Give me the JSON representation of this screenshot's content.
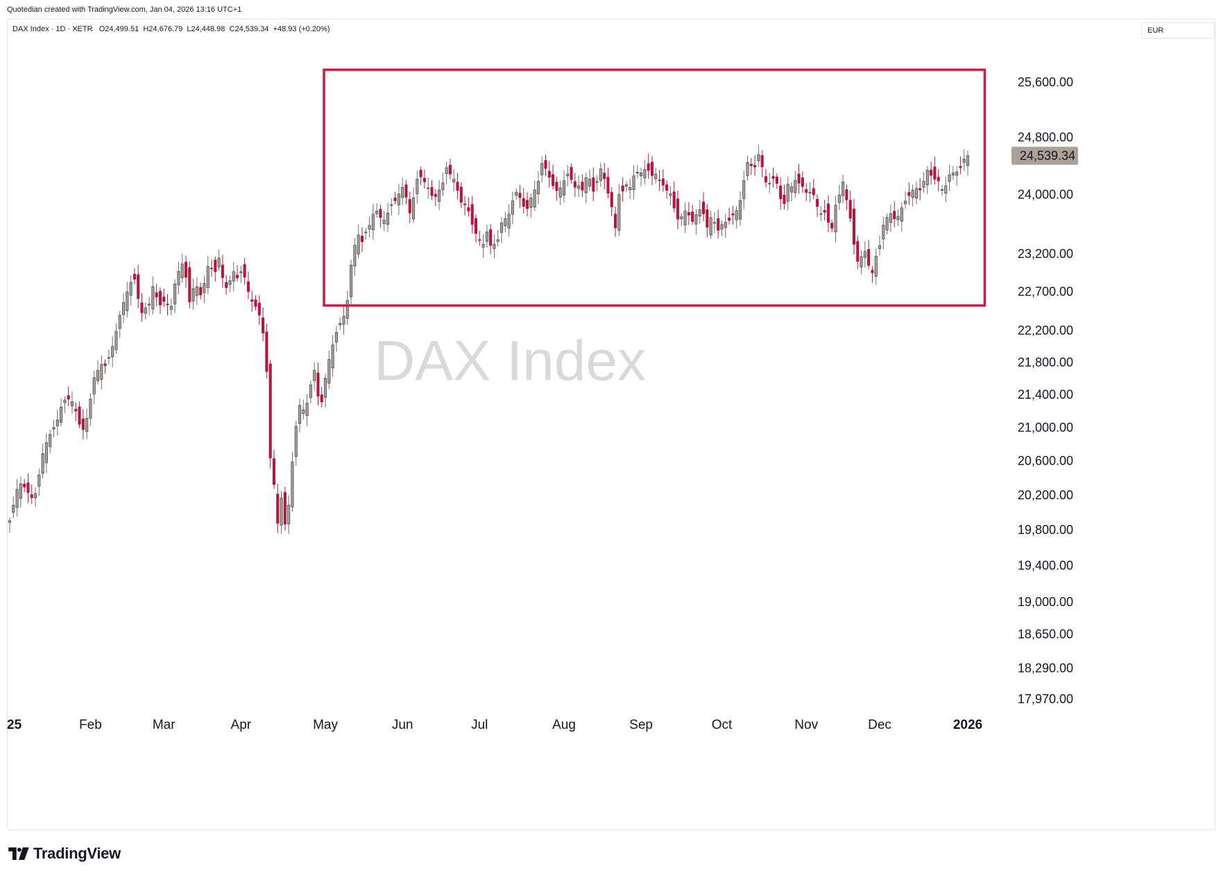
{
  "header": {
    "credit": "Quotedian created with TradingView.com, Jan 04, 2026 13:16 UTC+1"
  },
  "legend": {
    "symbol": "DAX Index · 1D · XETR",
    "open": "O24,499.51",
    "high": "H24,676.79",
    "low": "L24,448.98",
    "close": "C24,539.34",
    "change": "+48.93 (+0.20%)"
  },
  "currency": "EUR",
  "watermark": "DAX Index",
  "brand": {
    "name": "TradingView"
  },
  "colors": {
    "up_candle": "#aba196",
    "down_candle": "#b5163b",
    "wick": "#6b6b6b",
    "box": "#d31a44",
    "last_price_bg": "#aba196",
    "watermark": "#d9d9d9"
  },
  "chart_data": {
    "type": "candlestick",
    "title": "DAX Index",
    "interval": "1D",
    "exchange": "XETR",
    "currency": "EUR",
    "yscale": "log",
    "ylim": [
      17800,
      26200
    ],
    "y_ticks": [
      "25,600.00",
      "24,800.00",
      "24,000.00",
      "23,200.00",
      "22,700.00",
      "22,200.00",
      "21,800.00",
      "21,400.00",
      "21,000.00",
      "20,600.00",
      "20,200.00",
      "19,800.00",
      "19,400.00",
      "19,000.00",
      "18,650.00",
      "18,290.00",
      "17,970.00"
    ],
    "x_ticks": [
      {
        "label": "25",
        "date": "2025-01-02",
        "bold": true
      },
      {
        "label": "Feb",
        "date": "2025-02-03",
        "bold": false
      },
      {
        "label": "Mar",
        "date": "2025-03-03",
        "bold": false
      },
      {
        "label": "Apr",
        "date": "2025-04-01",
        "bold": false
      },
      {
        "label": "May",
        "date": "2025-05-02",
        "bold": false
      },
      {
        "label": "Jun",
        "date": "2025-06-02",
        "bold": false
      },
      {
        "label": "Jul",
        "date": "2025-07-01",
        "bold": false
      },
      {
        "label": "Aug",
        "date": "2025-08-01",
        "bold": false
      },
      {
        "label": "Sep",
        "date": "2025-09-01",
        "bold": false
      },
      {
        "label": "Oct",
        "date": "2025-10-01",
        "bold": false
      },
      {
        "label": "Nov",
        "date": "2025-11-03",
        "bold": false
      },
      {
        "label": "Dec",
        "date": "2025-12-01",
        "bold": false
      },
      {
        "label": "2026",
        "date": "2026-01-02",
        "bold": true
      }
    ],
    "last_price": "24,539.34",
    "range_box": {
      "start": "2025-05-02",
      "end": "2025-12-31",
      "low": 22520,
      "high": 25780
    },
    "closes": [
      19906,
      20100,
      20300,
      20340,
      20270,
      20200,
      20140,
      20330,
      20650,
      20800,
      20910,
      21000,
      21100,
      21280,
      21350,
      21340,
      21290,
      21100,
      20940,
      21050,
      21300,
      21600,
      21700,
      21780,
      21750,
      21900,
      22050,
      22300,
      22500,
      22650,
      22800,
      22900,
      22620,
      22420,
      22500,
      22550,
      22850,
      22500,
      22550,
      22600,
      22410,
      22760,
      22950,
      23070,
      22880,
      22520,
      22800,
      22750,
      22600,
      22990,
      23080,
      22870,
      23200,
      22900,
      22750,
      22850,
      22980,
      22850,
      23010,
      22810,
      22600,
      22540,
      22450,
      22250,
      21800,
      20640,
      20300,
      19800,
      20280,
      19670,
      20370,
      20800,
      21300,
      21200,
      21250,
      21500,
      21700,
      21350,
      21300,
      21700,
      21900,
      22100,
      22250,
      22350,
      22450,
      23000,
      23300,
      23450,
      23350,
      23520,
      23600,
      23800,
      23750,
      23620,
      23700,
      23850,
      23900,
      24000,
      24100,
      23950,
      23700,
      24050,
      24300,
      24200,
      24150,
      24000,
      23950,
      24050,
      24150,
      24380,
      24270,
      24200,
      24000,
      23830,
      23880,
      23650,
      23500,
      23400,
      23300,
      23500,
      23300,
      23330,
      23400,
      23700,
      23650,
      23800,
      24050,
      24000,
      23850,
      23790,
      23950,
      24070,
      24200,
      24500,
      24300,
      24200,
      24050,
      24060,
      24150,
      24300,
      24220,
      24100,
      24120,
      24050,
      24290,
      24180,
      23950,
      24400,
      24300,
      24060,
      23900,
      23500,
      24000,
      24050,
      24150,
      24080,
      24350,
      24280,
      24320,
      24380,
      24250,
      24300,
      24200,
      24130,
      24050,
      24000,
      23750,
      23620,
      23750,
      23800,
      23600,
      23700,
      23800,
      23750,
      23550,
      23700,
      23600,
      23480,
      23650,
      23600,
      23700,
      23750,
      23850,
      24150,
      24450,
      24400,
      24380,
      24600,
      24300,
      24100,
      24200,
      24250,
      24000,
      23800,
      24150,
      24100,
      24200,
      24150,
      24100,
      24000,
      24050,
      23950,
      23700,
      23800,
      23650,
      23500,
      23850,
      24000,
      24200,
      23850,
      23600,
      23150,
      23050,
      23300,
      23100,
      22900,
      23150,
      23300,
      23600,
      23700,
      23750,
      23630,
      23750,
      23880,
      23950,
      24050,
      24090,
      24050,
      24180,
      24350,
      24250,
      24200,
      24180,
      23990,
      24250,
      24300,
      24300,
      24350,
      24490,
      24539
    ]
  }
}
